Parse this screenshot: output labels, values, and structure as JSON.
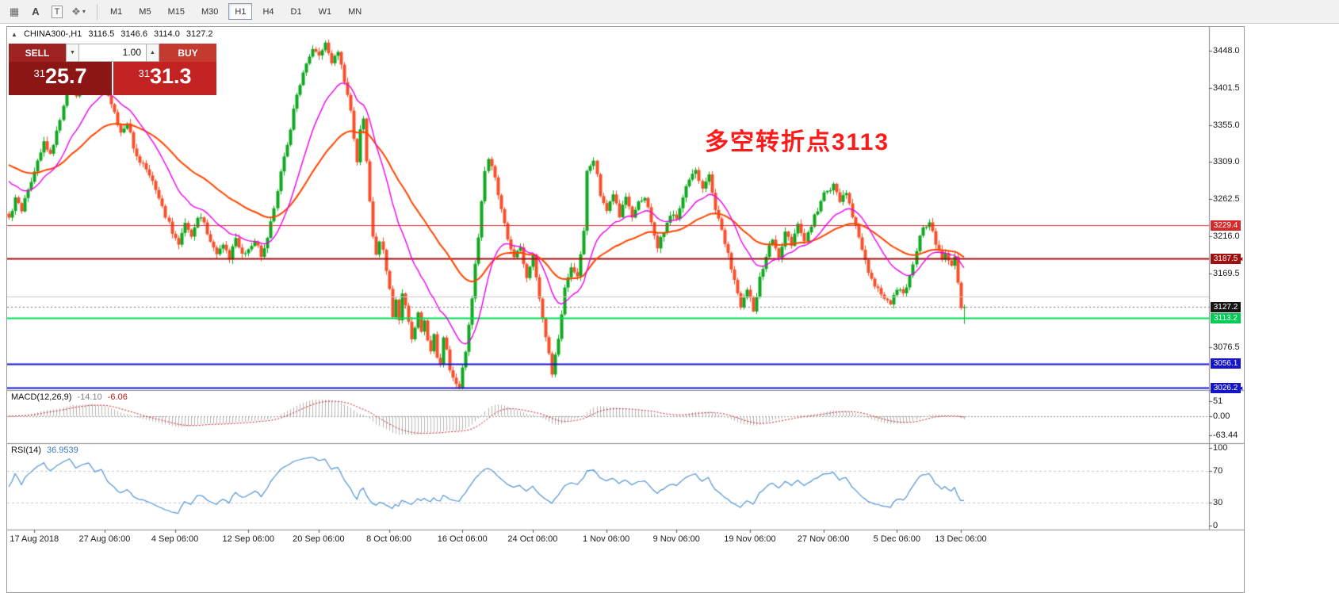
{
  "toolbar": {
    "icons": [
      {
        "name": "pattern",
        "glyph": "▦"
      },
      {
        "name": "label",
        "glyph": "A"
      },
      {
        "name": "text",
        "glyph": "T"
      },
      {
        "name": "styles",
        "glyph": "❖"
      },
      {
        "name": "dropdown",
        "glyph": "▾"
      }
    ],
    "timeframes": [
      "M1",
      "M5",
      "M15",
      "M30",
      "H1",
      "H4",
      "D1",
      "W1",
      "MN"
    ],
    "active": "H1"
  },
  "info": {
    "collapse_glyph": "▲",
    "symbol": "CHINA300-,H1",
    "open": "3116.5",
    "high": "3146.6",
    "low": "3114.0",
    "close": "3127.2"
  },
  "trade": {
    "sell": "SELL",
    "buy": "BUY",
    "volume": "1.00",
    "down_glyph": "▼",
    "up_glyph": "▲",
    "sell_prefix": "31",
    "sell_big": "25",
    "sell_pips": ".7",
    "buy_prefix": "31",
    "buy_big": "31",
    "buy_pips": ".3",
    "sell_bg": "#9e2222",
    "buy_bg": "#c43a2e",
    "sell_big_bg": "#8c1515",
    "buy_big_bg": "#c32222"
  },
  "annotation": {
    "text": "多空转折点3113",
    "color": "#ff1a1a"
  },
  "price_axis": {
    "ticks": [
      {
        "v": 3448.0,
        "label": "3448.0"
      },
      {
        "v": 3401.5,
        "label": "3401.5"
      },
      {
        "v": 3355.0,
        "label": "3355.0"
      },
      {
        "v": 3309.0,
        "label": "3309.0"
      },
      {
        "v": 3262.5,
        "label": "3262.5"
      },
      {
        "v": 3216.0,
        "label": "3216.0"
      },
      {
        "v": 3169.5,
        "label": "3169.5"
      },
      {
        "v": 3076.5,
        "label": "3076.5"
      }
    ]
  },
  "lines": [
    {
      "price": 3229.4,
      "label": "3229.4",
      "color": "#e03030",
      "tag_bg": "#d42a2a",
      "width": 1,
      "style": "solid",
      "tag": true
    },
    {
      "price": 3187.5,
      "label": "3187.5",
      "color": "#a01010",
      "tag_bg": "#a01010",
      "width": 2,
      "style": "solid",
      "tag": true,
      "arrow": true
    },
    {
      "price": 3140.0,
      "color": "#c8c8c8",
      "width": 1,
      "style": "solid",
      "tag": false
    },
    {
      "price": 3127.2,
      "label": "3127.2",
      "color": "#777777",
      "tag_bg": "#151515",
      "width": 1,
      "style": "dot",
      "tag": true
    },
    {
      "price": 3113.2,
      "label": "3113.2",
      "color": "#00dd55",
      "tag_bg": "#00cc55",
      "width": 2,
      "style": "solid",
      "tag": true
    },
    {
      "price": 3056.1,
      "label": "3056.1",
      "color": "#1515cc",
      "tag_bg": "#1515cc",
      "width": 2,
      "style": "solid",
      "tag": true
    },
    {
      "price": 3026.2,
      "label": "3026.2",
      "color": "#1515cc",
      "tag_bg": "#1515cc",
      "width": 2,
      "style": "solid",
      "tag": true,
      "arrow": true
    }
  ],
  "time_axis": [
    {
      "bar": 8,
      "label": "17 Aug 2018"
    },
    {
      "bar": 30,
      "label": "27 Aug 06:00"
    },
    {
      "bar": 52,
      "label": "4 Sep 06:00"
    },
    {
      "bar": 75,
      "label": "12 Sep 06:00"
    },
    {
      "bar": 97,
      "label": "20 Sep 06:00"
    },
    {
      "bar": 119,
      "label": "8 Oct 06:00"
    },
    {
      "bar": 142,
      "label": "16 Oct 06:00"
    },
    {
      "bar": 164,
      "label": "24 Oct 06:00"
    },
    {
      "bar": 187,
      "label": "1 Nov 06:00"
    },
    {
      "bar": 209,
      "label": "9 Nov 06:00"
    },
    {
      "bar": 232,
      "label": "19 Nov 06:00"
    },
    {
      "bar": 255,
      "label": "27 Nov 06:00"
    },
    {
      "bar": 278,
      "label": "5 Dec 06:00"
    },
    {
      "bar": 298,
      "label": "13 Dec 06:00"
    }
  ],
  "macd": {
    "name": "MACD(12,26,9)",
    "main": "-14.10",
    "signal": "-6.06",
    "axis": [
      {
        "v": 51,
        "label": "51"
      },
      {
        "v": 0,
        "label": "0.00"
      },
      {
        "v": -63.44,
        "label": "-63.44"
      }
    ],
    "hist_color": "#b4b4b4",
    "signal_color": "#d01818"
  },
  "rsi": {
    "name": "RSI(14)",
    "value": "36.9539",
    "axis": [
      {
        "v": 100,
        "label": "100"
      },
      {
        "v": 70,
        "label": "70"
      },
      {
        "v": 30,
        "label": "30"
      },
      {
        "v": 0,
        "label": "0"
      }
    ],
    "levels": [
      70,
      30
    ],
    "color": "#4f94d4"
  },
  "chart_data": {
    "type": "candlestick",
    "symbol": "CHINA300-",
    "period": "H1",
    "ohlc_current": {
      "open": 3116.5,
      "high": 3146.6,
      "low": 3114.0,
      "close": 3127.2
    },
    "bid": 3125.7,
    "ask": 3131.3,
    "visible_bars": 300,
    "ylim": [
      3026.5,
      3477.6
    ],
    "up_color": "#0fa81e",
    "down_color": "#f8502a",
    "ma_fast": {
      "period": 18,
      "color": "#ee00ee"
    },
    "ma_slow": {
      "period": 48,
      "color": "#ff4500"
    },
    "price_path": [
      [
        0,
        3238
      ],
      [
        2,
        3262
      ],
      [
        4,
        3248
      ],
      [
        6,
        3272
      ],
      [
        8,
        3300
      ],
      [
        11,
        3335
      ],
      [
        13,
        3318
      ],
      [
        15,
        3348
      ],
      [
        17,
        3380
      ],
      [
        19,
        3410
      ],
      [
        21,
        3392
      ],
      [
        23,
        3416
      ],
      [
        25,
        3436
      ],
      [
        27,
        3415
      ],
      [
        29,
        3428
      ],
      [
        31,
        3394
      ],
      [
        33,
        3368
      ],
      [
        35,
        3342
      ],
      [
        37,
        3360
      ],
      [
        39,
        3328
      ],
      [
        41,
        3310
      ],
      [
        43,
        3302
      ],
      [
        45,
        3282
      ],
      [
        47,
        3262
      ],
      [
        49,
        3240
      ],
      [
        51,
        3222
      ],
      [
        53,
        3208
      ],
      [
        55,
        3232
      ],
      [
        57,
        3218
      ],
      [
        59,
        3242
      ],
      [
        61,
        3230
      ],
      [
        63,
        3212
      ],
      [
        65,
        3196
      ],
      [
        67,
        3206
      ],
      [
        69,
        3190
      ],
      [
        71,
        3212
      ],
      [
        73,
        3194
      ],
      [
        75,
        3200
      ],
      [
        77,
        3212
      ],
      [
        79,
        3190
      ],
      [
        81,
        3216
      ],
      [
        83,
        3252
      ],
      [
        85,
        3296
      ],
      [
        87,
        3330
      ],
      [
        89,
        3372
      ],
      [
        91,
        3408
      ],
      [
        93,
        3430
      ],
      [
        95,
        3448
      ],
      [
        97,
        3440
      ],
      [
        99,
        3456
      ],
      [
        101,
        3432
      ],
      [
        103,
        3444
      ],
      [
        105,
        3410
      ],
      [
        107,
        3372
      ],
      [
        108,
        3340
      ],
      [
        109,
        3310
      ],
      [
        110,
        3352
      ],
      [
        111,
        3366
      ],
      [
        112,
        3310
      ],
      [
        113,
        3256
      ],
      [
        114,
        3218
      ],
      [
        115,
        3190
      ],
      [
        116,
        3212
      ],
      [
        117,
        3196
      ],
      [
        118,
        3170
      ],
      [
        119,
        3152
      ],
      [
        120,
        3116
      ],
      [
        121,
        3135
      ],
      [
        122,
        3110
      ],
      [
        123,
        3145
      ],
      [
        124,
        3128
      ],
      [
        125,
        3112
      ],
      [
        126,
        3088
      ],
      [
        127,
        3102
      ],
      [
        128,
        3122
      ],
      [
        129,
        3098
      ],
      [
        130,
        3110
      ],
      [
        131,
        3085
      ],
      [
        132,
        3072
      ],
      [
        133,
        3090
      ],
      [
        134,
        3064
      ],
      [
        135,
        3056
      ],
      [
        136,
        3088
      ],
      [
        137,
        3072
      ],
      [
        138,
        3050
      ],
      [
        139,
        3038
      ],
      [
        141,
        3026
      ],
      [
        143,
        3072
      ],
      [
        145,
        3140
      ],
      [
        147,
        3216
      ],
      [
        149,
        3296
      ],
      [
        150,
        3312
      ],
      [
        152,
        3288
      ],
      [
        154,
        3252
      ],
      [
        156,
        3212
      ],
      [
        158,
        3186
      ],
      [
        160,
        3204
      ],
      [
        162,
        3164
      ],
      [
        164,
        3192
      ],
      [
        166,
        3138
      ],
      [
        168,
        3092
      ],
      [
        170,
        3046
      ],
      [
        172,
        3088
      ],
      [
        174,
        3150
      ],
      [
        176,
        3180
      ],
      [
        178,
        3162
      ],
      [
        180,
        3226
      ],
      [
        181,
        3298
      ],
      [
        183,
        3312
      ],
      [
        185,
        3268
      ],
      [
        187,
        3248
      ],
      [
        189,
        3266
      ],
      [
        191,
        3242
      ],
      [
        193,
        3262
      ],
      [
        195,
        3238
      ],
      [
        197,
        3258
      ],
      [
        199,
        3266
      ],
      [
        201,
        3236
      ],
      [
        203,
        3202
      ],
      [
        205,
        3222
      ],
      [
        207,
        3244
      ],
      [
        209,
        3236
      ],
      [
        211,
        3262
      ],
      [
        213,
        3288
      ],
      [
        215,
        3300
      ],
      [
        217,
        3276
      ],
      [
        219,
        3292
      ],
      [
        221,
        3252
      ],
      [
        223,
        3226
      ],
      [
        225,
        3192
      ],
      [
        227,
        3158
      ],
      [
        229,
        3128
      ],
      [
        231,
        3152
      ],
      [
        233,
        3122
      ],
      [
        235,
        3162
      ],
      [
        237,
        3192
      ],
      [
        239,
        3212
      ],
      [
        241,
        3186
      ],
      [
        243,
        3222
      ],
      [
        245,
        3206
      ],
      [
        247,
        3232
      ],
      [
        249,
        3212
      ],
      [
        252,
        3240
      ],
      [
        255,
        3268
      ],
      [
        258,
        3280
      ],
      [
        260,
        3262
      ],
      [
        262,
        3272
      ],
      [
        264,
        3240
      ],
      [
        266,
        3216
      ],
      [
        268,
        3186
      ],
      [
        270,
        3160
      ],
      [
        272,
        3150
      ],
      [
        274,
        3138
      ],
      [
        276,
        3130
      ],
      [
        278,
        3152
      ],
      [
        280,
        3142
      ],
      [
        282,
        3166
      ],
      [
        284,
        3200
      ],
      [
        286,
        3228
      ],
      [
        288,
        3232
      ],
      [
        290,
        3206
      ],
      [
        292,
        3186
      ],
      [
        293,
        3196
      ],
      [
        294,
        3186
      ],
      [
        295,
        3178
      ],
      [
        296,
        3188
      ],
      [
        297,
        3160
      ],
      [
        298,
        3128
      ],
      [
        299,
        3127
      ]
    ]
  }
}
